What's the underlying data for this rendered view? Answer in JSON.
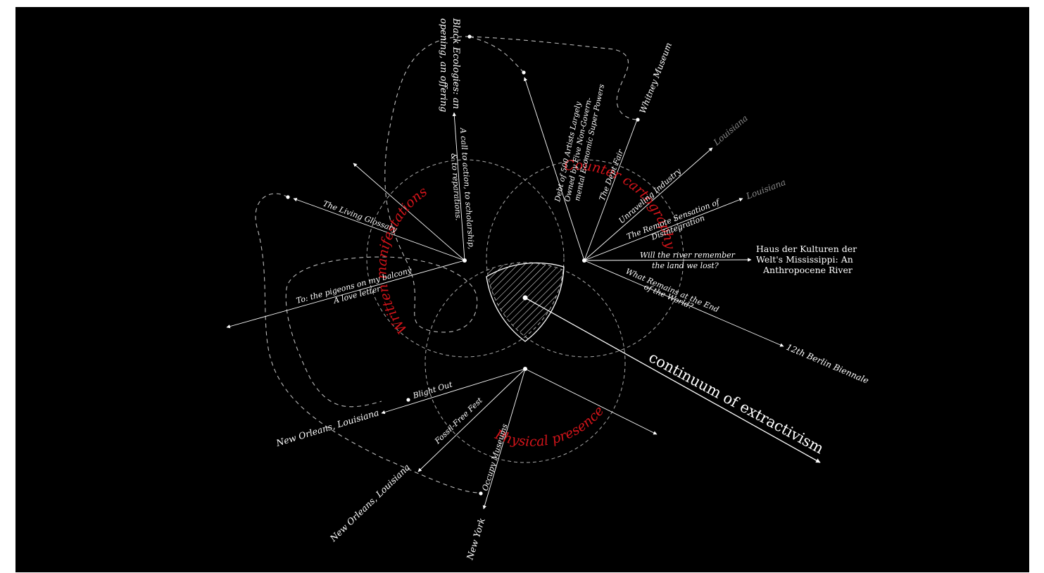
{
  "colors": {
    "background": "#000000",
    "line": "#ffffff",
    "accent": "#d4141a",
    "muted": "#8a8a8a"
  },
  "circles": {
    "written": "Written manifestations",
    "counter": "Counter cartography",
    "physical": "Physical presence"
  },
  "center": {
    "label": "continuum of extractivism"
  },
  "written_branch": {
    "living_glossary": "The Living Glossary",
    "call_to_action_1": "A call to action, to scholarship,",
    "call_to_action_2": "& to reparations.",
    "black_ecologies_1": "Black Ecologies: an",
    "black_ecologies_2": "opening, an offering",
    "pigeons_1": "To: the pigeons on my balcony",
    "pigeons_2": "A love letter"
  },
  "counter_branch": {
    "debt_1": "Debt of 500 Artists Largely",
    "debt_2": "Owned by Five Non-Govern-",
    "debt_3": "mental Economic Super Powers",
    "dept_fair": "The Dept Fair",
    "whitney": "Whitney Museum",
    "unraveling": "Unraveling Industry",
    "louisiana_1": "Louisiana",
    "remote_1": "The Remote Sensation of",
    "remote_2": "Disintegration",
    "louisiana_2": "Louisiana",
    "river_1": "Will the river remember",
    "river_2": "the land we lost?",
    "haus_1": "Haus der Kulturen der",
    "haus_2": "Welt's Mississippi: An",
    "haus_3": "Anthropocene River",
    "remains_1": "What Remains at the End",
    "remains_2": "of the World?",
    "berlin": "12th Berlin Biennale"
  },
  "physical_branch": {
    "blight_out": "Blight Out",
    "new_orleans_1": "New Orleans, Louisiana",
    "fossil_free": "Fossil-Free Fest",
    "new_orleans_2": "New Orleans, Louisiana",
    "occupy": "Occupy Museums",
    "new_york": "New York"
  }
}
